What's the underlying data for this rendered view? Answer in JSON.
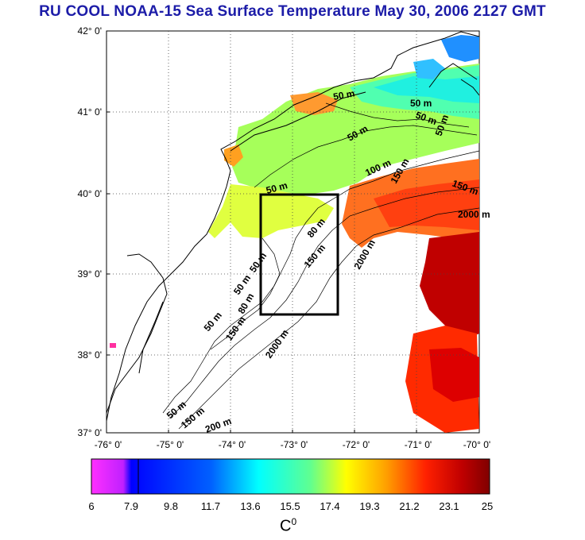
{
  "title": "RU COOL  NOAA-15 Sea Surface Temperature May 30, 2006 2127 GMT",
  "map": {
    "lat_labels": [
      "42° 0'",
      "41° 0'",
      "40° 0'",
      "39° 0'",
      "38° 0'",
      "37° 0'"
    ],
    "lon_labels": [
      "-76° 0'",
      "-75° 0'",
      "-74° 0'",
      "-73° 0'",
      "-72° 0'",
      "-71° 0'",
      "-70° 0'"
    ],
    "contour_labels": [
      {
        "text": "50 m"
      },
      {
        "text": "50 m"
      },
      {
        "text": "50 m"
      },
      {
        "text": "50 m"
      },
      {
        "text": "50 m"
      },
      {
        "text": "50 m"
      },
      {
        "text": "100 m"
      },
      {
        "text": "150 m"
      },
      {
        "text": "150 m"
      },
      {
        "text": "2000 m"
      },
      {
        "text": "2000 m"
      },
      {
        "text": "80 m"
      },
      {
        "text": "150 m"
      },
      {
        "text": "50 m"
      },
      {
        "text": "50 m"
      },
      {
        "text": "80 m"
      },
      {
        "text": "50 m"
      },
      {
        "text": "150 m"
      },
      {
        "text": "2000 m"
      },
      {
        "text": "50 m"
      },
      {
        "text": "150 m"
      },
      {
        "text": "200 m"
      }
    ]
  },
  "colorbar": {
    "ticks": [
      "6",
      "7.9",
      "9.8",
      "11.7",
      "13.6",
      "15.5",
      "17.4",
      "19.3",
      "21.2",
      "23.1",
      "25"
    ],
    "unit_base": "C",
    "unit_sup": "0",
    "colors": {
      "magenta": "#ff2bff",
      "blue": "#0000ff",
      "cyan": "#00ffff",
      "yellow": "#ffff00",
      "red": "#ff0000",
      "dark_red": "#800000"
    }
  }
}
